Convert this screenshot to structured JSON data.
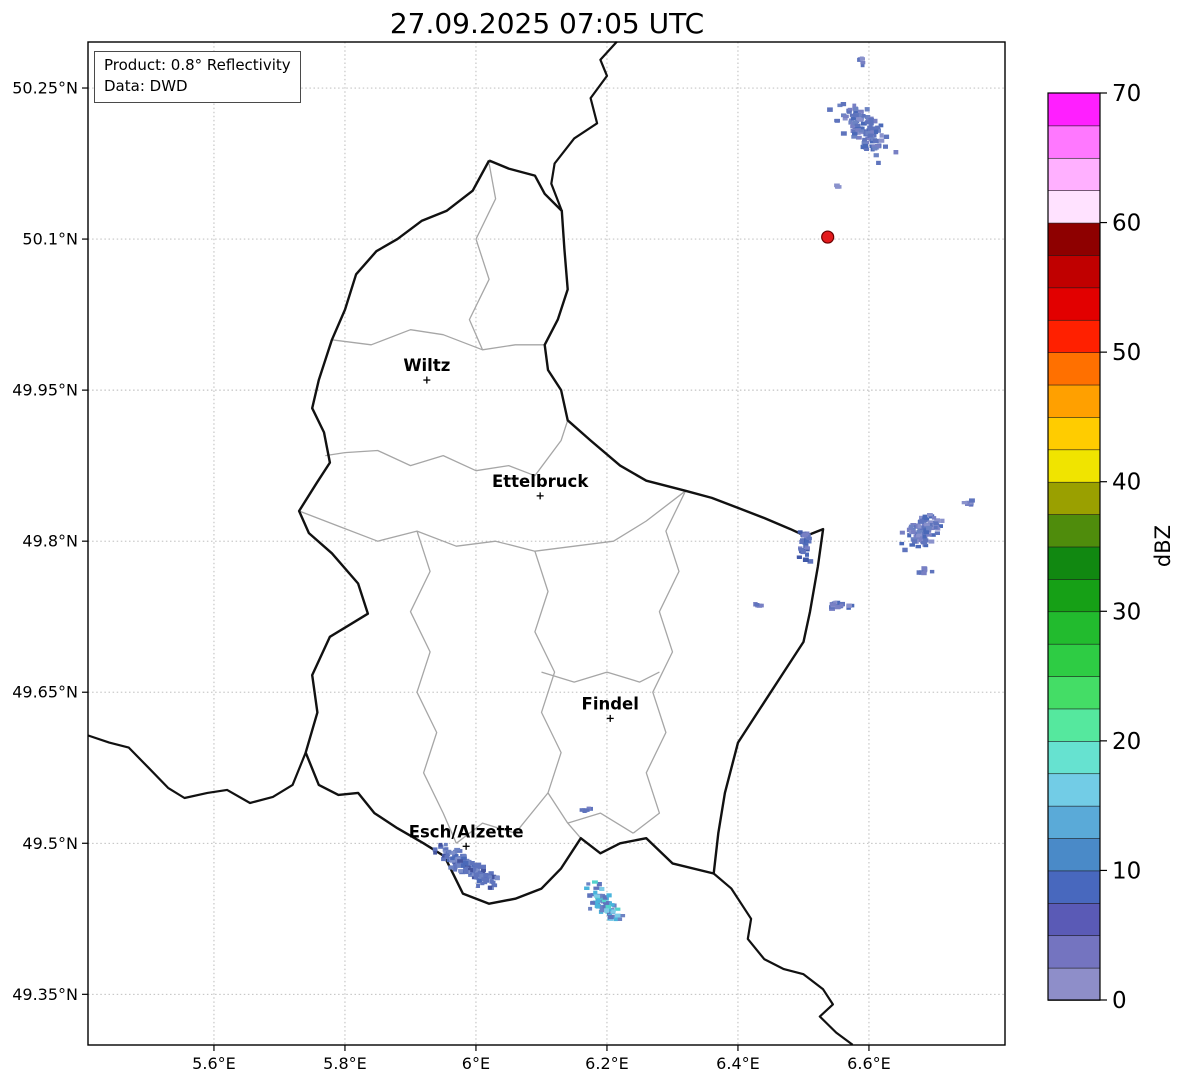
{
  "title": "27.09.2025 07:05 UTC",
  "info_box": {
    "line1": "Product: 0.8° Reflectivity",
    "line2": "Data: DWD"
  },
  "axes": {
    "x_ticks": [
      {
        "value": 5.6,
        "label": "5.6°E"
      },
      {
        "value": 5.8,
        "label": "5.8°E"
      },
      {
        "value": 6.0,
        "label": "6°E"
      },
      {
        "value": 6.2,
        "label": "6.2°E"
      },
      {
        "value": 6.4,
        "label": "6.4°E"
      },
      {
        "value": 6.6,
        "label": "6.6°E"
      }
    ],
    "y_ticks": [
      {
        "value": 50.25,
        "label": "50.25°N"
      },
      {
        "value": 50.1,
        "label": "50.1°N"
      },
      {
        "value": 49.95,
        "label": "49.95°N"
      },
      {
        "value": 49.8,
        "label": "49.8°N"
      },
      {
        "value": 49.65,
        "label": "49.65°N"
      },
      {
        "value": 49.5,
        "label": "49.5°N"
      },
      {
        "value": 49.35,
        "label": "49.35°N"
      }
    ]
  },
  "colorbar": {
    "label": "dBZ",
    "min": 0,
    "max": 70,
    "segment_step": 2.5,
    "tick_values": [
      0,
      10,
      20,
      30,
      40,
      50,
      60,
      70
    ],
    "colors": [
      "#8e8ec9",
      "#7474c0",
      "#5a5ab6",
      "#4868be",
      "#4a8ac8",
      "#5aaad8",
      "#72cce6",
      "#66e2d0",
      "#55e89e",
      "#44dd66",
      "#2ecc44",
      "#22bb2e",
      "#16a016",
      "#118811",
      "#4f8c0c",
      "#9aa000",
      "#f0e400",
      "#ffcc00",
      "#ffa000",
      "#ff7000",
      "#ff2000",
      "#e20000",
      "#c00000",
      "#8e0000",
      "#ffe2ff",
      "#ffb0ff",
      "#ff78ff",
      "#ff1fff"
    ]
  },
  "cities": [
    {
      "name": "Wiltz",
      "lon": 5.925,
      "lat": 49.96
    },
    {
      "name": "Ettelbruck",
      "lon": 6.098,
      "lat": 49.845
    },
    {
      "name": "Findel",
      "lon": 6.205,
      "lat": 49.624
    },
    {
      "name": "Esch/Alzette",
      "lon": 5.985,
      "lat": 49.497
    }
  ],
  "radar_marker": {
    "lon": 6.537,
    "lat": 50.102,
    "fill": "#e31a1c",
    "edge": "#6b0000"
  },
  "echo_clusters": [
    {
      "name": "cluster-northeast-main",
      "lon": 6.594,
      "lat": 50.21,
      "len": 0.12,
      "wid": 0.048,
      "dir": [
        1,
        -0.55
      ],
      "n": 130,
      "seed": 11,
      "palette": [
        "#7880c4",
        "#5f74bd",
        "#4a69b8",
        "#8a92cc",
        "#5f74bd",
        "#6d83c3"
      ]
    },
    {
      "name": "cluster-northeast-top",
      "lon": 6.588,
      "lat": 50.277,
      "len": 0.02,
      "wid": 0.01,
      "dir": [
        1,
        0
      ],
      "n": 6,
      "seed": 2,
      "palette": [
        "#7880c4",
        "#5f74bd",
        "#8a92cc"
      ]
    },
    {
      "name": "speck-north",
      "lon": 6.553,
      "lat": 50.152,
      "len": 0.012,
      "wid": 0.008,
      "dir": [
        1,
        0
      ],
      "n": 3,
      "seed": 3,
      "palette": [
        "#7880c4",
        "#8a92cc"
      ]
    },
    {
      "name": "cluster-east-main",
      "lon": 6.682,
      "lat": 49.808,
      "len": 0.085,
      "wid": 0.05,
      "dir": [
        1,
        0.35
      ],
      "n": 90,
      "seed": 4,
      "palette": [
        "#7880c4",
        "#5f74bd",
        "#4a69b8",
        "#8a92cc",
        "#5f74bd",
        "#6d83c3"
      ]
    },
    {
      "name": "cluster-east-right",
      "lon": 6.753,
      "lat": 49.838,
      "len": 0.035,
      "wid": 0.01,
      "dir": [
        1,
        0
      ],
      "n": 9,
      "seed": 5,
      "palette": [
        "#7880c4",
        "#5f74bd",
        "#8a92cc"
      ]
    },
    {
      "name": "cluster-east-low",
      "lon": 6.683,
      "lat": 49.771,
      "len": 0.03,
      "wid": 0.008,
      "dir": [
        1,
        0
      ],
      "n": 7,
      "seed": 6,
      "palette": [
        "#7880c4",
        "#5f74bd"
      ]
    },
    {
      "name": "cluster-border-east",
      "lon": 6.5,
      "lat": 49.795,
      "len": 0.04,
      "wid": 0.034,
      "dir": [
        0.3,
        1
      ],
      "n": 34,
      "seed": 7,
      "palette": [
        "#5f74bd",
        "#4a69b8",
        "#3f58a8",
        "#7880c4",
        "#5f74bd"
      ]
    },
    {
      "name": "cluster-sauer",
      "lon": 6.558,
      "lat": 49.737,
      "len": 0.055,
      "wid": 0.013,
      "dir": [
        1,
        0.1
      ],
      "n": 22,
      "seed": 8,
      "palette": [
        "#7880c4",
        "#5f74bd",
        "#4a69b8",
        "#8a92cc"
      ]
    },
    {
      "name": "speck-sauer-west",
      "lon": 6.429,
      "lat": 49.736,
      "len": 0.022,
      "wid": 0.007,
      "dir": [
        1,
        0
      ],
      "n": 5,
      "seed": 9,
      "palette": [
        "#7880c4",
        "#5f74bd"
      ]
    },
    {
      "name": "cluster-esch",
      "lon": 5.988,
      "lat": 49.477,
      "len": 0.12,
      "wid": 0.026,
      "dir": [
        1,
        -0.37
      ],
      "n": 150,
      "seed": 10,
      "palette": [
        "#5f74bd",
        "#6d83c3",
        "#4a69b8",
        "#7e90cb",
        "#44549f",
        "#5f74bd"
      ]
    },
    {
      "name": "speck-south-mid",
      "lon": 6.172,
      "lat": 49.534,
      "len": 0.035,
      "wid": 0.008,
      "dir": [
        1,
        0
      ],
      "n": 7,
      "seed": 12,
      "palette": [
        "#7880c4",
        "#5f74bd"
      ]
    },
    {
      "name": "cluster-southeast-teal",
      "lon": 6.193,
      "lat": 49.441,
      "len": 0.078,
      "wid": 0.03,
      "dir": [
        1,
        -0.55
      ],
      "n": 75,
      "seed": 13,
      "palette": [
        "#5f74bd",
        "#6d83c3",
        "#49b4dc",
        "#54d2cc",
        "#6d83c3",
        "#7ecce8",
        "#5f74bd",
        "#49b4dc"
      ]
    }
  ],
  "map": {
    "line_colors": {
      "country": "#111111",
      "neighbor": "#111111",
      "district": "#a6a6a6",
      "grid": "#b5b5b5"
    },
    "borders": {
      "country": [
        [
          6.02,
          50.178
        ],
        [
          6.05,
          50.17
        ],
        [
          6.09,
          50.163
        ],
        [
          6.105,
          50.145
        ],
        [
          6.131,
          50.128
        ],
        [
          6.135,
          50.09
        ],
        [
          6.14,
          50.05
        ],
        [
          6.125,
          50.02
        ],
        [
          6.105,
          49.995
        ],
        [
          6.11,
          49.97
        ],
        [
          6.13,
          49.95
        ],
        [
          6.14,
          49.92
        ],
        [
          6.175,
          49.9
        ],
        [
          6.22,
          49.875
        ],
        [
          6.26,
          49.86
        ],
        [
          6.32,
          49.85
        ],
        [
          6.36,
          49.843
        ],
        [
          6.4,
          49.833
        ],
        [
          6.44,
          49.823
        ],
        [
          6.48,
          49.812
        ],
        [
          6.503,
          49.805
        ],
        [
          6.53,
          49.812
        ],
        [
          6.522,
          49.775
        ],
        [
          6.51,
          49.73
        ],
        [
          6.5,
          49.7
        ],
        [
          6.47,
          49.67
        ],
        [
          6.43,
          49.63
        ],
        [
          6.4,
          49.6
        ],
        [
          6.38,
          49.55
        ],
        [
          6.37,
          49.51
        ],
        [
          6.363,
          49.47
        ],
        [
          6.3,
          49.48
        ],
        [
          6.26,
          49.505
        ],
        [
          6.22,
          49.5
        ],
        [
          6.19,
          49.49
        ],
        [
          6.16,
          49.505
        ],
        [
          6.13,
          49.475
        ],
        [
          6.1,
          49.455
        ],
        [
          6.06,
          49.445
        ],
        [
          6.02,
          49.44
        ],
        [
          5.98,
          49.45
        ],
        [
          5.952,
          49.487
        ],
        [
          5.92,
          49.5
        ],
        [
          5.88,
          49.515
        ],
        [
          5.845,
          49.53
        ],
        [
          5.82,
          49.55
        ],
        [
          5.79,
          49.548
        ],
        [
          5.76,
          49.558
        ],
        [
          5.74,
          49.59
        ],
        [
          5.758,
          49.63
        ],
        [
          5.75,
          49.667
        ],
        [
          5.777,
          49.705
        ],
        [
          5.81,
          49.718
        ],
        [
          5.835,
          49.728
        ],
        [
          5.82,
          49.758
        ],
        [
          5.78,
          49.788
        ],
        [
          5.745,
          49.808
        ],
        [
          5.73,
          49.83
        ],
        [
          5.757,
          49.858
        ],
        [
          5.777,
          49.878
        ],
        [
          5.768,
          49.908
        ],
        [
          5.75,
          49.932
        ],
        [
          5.76,
          49.96
        ],
        [
          5.78,
          50.0
        ],
        [
          5.8,
          50.03
        ],
        [
          5.817,
          50.065
        ],
        [
          5.848,
          50.088
        ],
        [
          5.88,
          50.1
        ],
        [
          5.917,
          50.118
        ],
        [
          5.955,
          50.128
        ],
        [
          5.995,
          50.148
        ],
        [
          6.02,
          50.178
        ]
      ],
      "neighbors": [
        [
          [
            6.131,
            50.128
          ],
          [
            6.115,
            50.155
          ],
          [
            6.12,
            50.175
          ],
          [
            6.15,
            50.2
          ],
          [
            6.185,
            50.215
          ],
          [
            6.175,
            50.24
          ],
          [
            6.2,
            50.262
          ],
          [
            6.19,
            50.278
          ],
          [
            6.215,
            50.296
          ]
        ],
        [
          [
            5.408,
            49.607
          ],
          [
            5.44,
            49.6
          ],
          [
            5.47,
            49.595
          ],
          [
            5.5,
            49.575
          ],
          [
            5.53,
            49.555
          ],
          [
            5.555,
            49.545
          ],
          [
            5.59,
            49.55
          ],
          [
            5.62,
            49.553
          ],
          [
            5.655,
            49.54
          ],
          [
            5.69,
            49.546
          ],
          [
            5.72,
            49.558
          ],
          [
            5.74,
            49.59
          ]
        ],
        [
          [
            6.363,
            49.47
          ],
          [
            6.39,
            49.455
          ],
          [
            6.42,
            49.425
          ],
          [
            6.415,
            49.405
          ],
          [
            6.44,
            49.385
          ],
          [
            6.47,
            49.375
          ],
          [
            6.5,
            49.37
          ],
          [
            6.53,
            49.355
          ],
          [
            6.545,
            49.34
          ],
          [
            6.525,
            49.328
          ],
          [
            6.55,
            49.312
          ],
          [
            6.575,
            49.3
          ]
        ]
      ],
      "districts": [
        [
          [
            6.02,
            50.175
          ],
          [
            6.03,
            50.14
          ],
          [
            6.0,
            50.1
          ],
          [
            6.02,
            50.06
          ],
          [
            5.99,
            50.02
          ],
          [
            6.01,
            49.99
          ]
        ],
        [
          [
            5.78,
            50.0
          ],
          [
            5.84,
            49.995
          ],
          [
            5.9,
            50.01
          ],
          [
            5.95,
            50.005
          ],
          [
            6.01,
            49.99
          ],
          [
            6.06,
            49.995
          ],
          [
            6.105,
            49.995
          ]
        ],
        [
          [
            5.77,
            49.885
          ],
          [
            5.8,
            49.888
          ],
          [
            5.85,
            49.89
          ],
          [
            5.9,
            49.875
          ],
          [
            5.95,
            49.885
          ],
          [
            6.0,
            49.87
          ],
          [
            6.05,
            49.875
          ],
          [
            6.09,
            49.865
          ],
          [
            6.13,
            49.9
          ],
          [
            6.14,
            49.92
          ]
        ],
        [
          [
            5.73,
            49.83
          ],
          [
            5.79,
            49.815
          ],
          [
            5.85,
            49.8
          ],
          [
            5.91,
            49.81
          ],
          [
            5.97,
            49.795
          ],
          [
            6.03,
            49.8
          ],
          [
            6.09,
            49.79
          ],
          [
            6.15,
            49.795
          ],
          [
            6.21,
            49.8
          ],
          [
            6.26,
            49.82
          ],
          [
            6.32,
            49.85
          ]
        ],
        [
          [
            5.91,
            49.81
          ],
          [
            5.93,
            49.77
          ],
          [
            5.9,
            49.73
          ],
          [
            5.93,
            49.69
          ],
          [
            5.91,
            49.65
          ],
          [
            5.94,
            49.61
          ],
          [
            5.92,
            49.57
          ],
          [
            5.95,
            49.53
          ],
          [
            5.97,
            49.5
          ]
        ],
        [
          [
            6.32,
            49.85
          ],
          [
            6.29,
            49.81
          ],
          [
            6.31,
            49.77
          ],
          [
            6.28,
            49.73
          ],
          [
            6.3,
            49.69
          ],
          [
            6.27,
            49.65
          ],
          [
            6.29,
            49.61
          ],
          [
            6.26,
            49.57
          ],
          [
            6.28,
            49.53
          ],
          [
            6.24,
            49.51
          ]
        ],
        [
          [
            6.09,
            49.79
          ],
          [
            6.11,
            49.75
          ],
          [
            6.09,
            49.71
          ],
          [
            6.12,
            49.67
          ],
          [
            6.1,
            49.63
          ],
          [
            6.13,
            49.59
          ],
          [
            6.11,
            49.55
          ],
          [
            6.14,
            49.52
          ],
          [
            6.16,
            49.505
          ]
        ],
        [
          [
            6.1,
            49.67
          ],
          [
            6.15,
            49.66
          ],
          [
            6.2,
            49.67
          ],
          [
            6.25,
            49.66
          ],
          [
            6.28,
            49.67
          ]
        ],
        [
          [
            5.97,
            49.5
          ],
          [
            6.01,
            49.52
          ],
          [
            6.06,
            49.51
          ],
          [
            6.11,
            49.55
          ]
        ],
        [
          [
            6.14,
            49.52
          ],
          [
            6.19,
            49.53
          ],
          [
            6.24,
            49.51
          ]
        ]
      ]
    }
  }
}
